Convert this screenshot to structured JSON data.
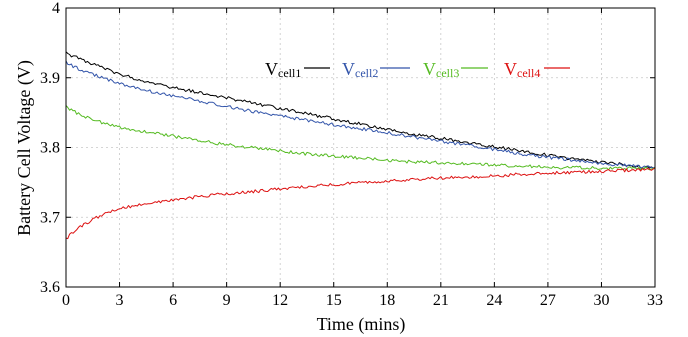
{
  "chart_data": {
    "type": "line",
    "xlabel": "Time (mins)",
    "ylabel": "Battery Cell Voltage (V)",
    "xlim": [
      0,
      33
    ],
    "ylim": [
      3.6,
      4.0
    ],
    "xticks": [
      0,
      3,
      6,
      9,
      12,
      15,
      18,
      21,
      24,
      27,
      30,
      33
    ],
    "yticks": [
      3.6,
      3.7,
      3.8,
      3.9,
      4.0
    ],
    "ytick_labels": [
      "3.6",
      "3.7",
      "3.8",
      "3.9",
      "4"
    ],
    "grid": true,
    "legend_position": "top",
    "series": [
      {
        "key": "cell1",
        "name_main": "V",
        "name_sub": "cell1",
        "color": "#000000",
        "x": [
          0,
          0.5,
          1,
          1.5,
          2,
          3,
          4,
          5,
          6,
          7,
          8,
          9,
          10,
          11,
          12,
          13,
          14,
          15,
          16,
          17,
          18,
          19,
          20,
          21,
          22,
          23,
          24,
          25,
          26,
          27,
          28,
          29,
          30,
          31,
          32,
          33
        ],
        "y": [
          3.935,
          3.93,
          3.925,
          3.92,
          3.915,
          3.905,
          3.898,
          3.892,
          3.886,
          3.881,
          3.876,
          3.871,
          3.866,
          3.861,
          3.856,
          3.851,
          3.846,
          3.841,
          3.836,
          3.831,
          3.826,
          3.821,
          3.817,
          3.813,
          3.809,
          3.805,
          3.801,
          3.797,
          3.793,
          3.789,
          3.785,
          3.782,
          3.779,
          3.776,
          3.773,
          3.771
        ]
      },
      {
        "key": "cell2",
        "name_main": "V",
        "name_sub": "cell2",
        "color": "#3355aa",
        "x": [
          0,
          0.5,
          1,
          1.5,
          2,
          3,
          4,
          5,
          6,
          7,
          8,
          9,
          10,
          11,
          12,
          13,
          14,
          15,
          16,
          17,
          18,
          19,
          20,
          21,
          22,
          23,
          24,
          25,
          26,
          27,
          28,
          29,
          30,
          31,
          32,
          33
        ],
        "y": [
          3.922,
          3.915,
          3.91,
          3.905,
          3.9,
          3.892,
          3.885,
          3.879,
          3.874,
          3.869,
          3.864,
          3.859,
          3.854,
          3.849,
          3.845,
          3.841,
          3.837,
          3.833,
          3.829,
          3.825,
          3.821,
          3.817,
          3.813,
          3.809,
          3.805,
          3.801,
          3.797,
          3.793,
          3.789,
          3.786,
          3.783,
          3.78,
          3.777,
          3.775,
          3.773,
          3.771
        ]
      },
      {
        "key": "cell3",
        "name_main": "V",
        "name_sub": "cell3",
        "color": "#55bb22",
        "x": [
          0,
          0.5,
          1,
          1.5,
          2,
          3,
          4,
          5,
          6,
          7,
          8,
          9,
          10,
          11,
          12,
          13,
          14,
          15,
          16,
          17,
          18,
          19,
          20,
          21,
          22,
          23,
          24,
          25,
          26,
          27,
          28,
          29,
          30,
          31,
          32,
          33
        ],
        "y": [
          3.858,
          3.851,
          3.845,
          3.84,
          3.836,
          3.829,
          3.824,
          3.82,
          3.816,
          3.812,
          3.808,
          3.804,
          3.801,
          3.798,
          3.795,
          3.792,
          3.79,
          3.788,
          3.786,
          3.784,
          3.782,
          3.78,
          3.779,
          3.778,
          3.777,
          3.776,
          3.775,
          3.774,
          3.773,
          3.772,
          3.771,
          3.771,
          3.77,
          3.77,
          3.77,
          3.77
        ]
      },
      {
        "key": "cell4",
        "name_main": "V",
        "name_sub": "cell4",
        "color": "#dd1111",
        "x": [
          0,
          0.3,
          0.6,
          1,
          1.5,
          2,
          3,
          4,
          5,
          6,
          7,
          8,
          9,
          10,
          11,
          12,
          13,
          14,
          15,
          16,
          17,
          18,
          19,
          20,
          21,
          22,
          23,
          24,
          25,
          26,
          27,
          28,
          29,
          30,
          31,
          32,
          33
        ],
        "y": [
          3.668,
          3.677,
          3.684,
          3.69,
          3.697,
          3.703,
          3.712,
          3.718,
          3.722,
          3.725,
          3.728,
          3.731,
          3.734,
          3.736,
          3.738,
          3.741,
          3.743,
          3.745,
          3.747,
          3.749,
          3.751,
          3.752,
          3.753,
          3.755,
          3.756,
          3.757,
          3.758,
          3.759,
          3.761,
          3.762,
          3.763,
          3.764,
          3.765,
          3.766,
          3.767,
          3.768,
          3.769
        ]
      }
    ]
  }
}
